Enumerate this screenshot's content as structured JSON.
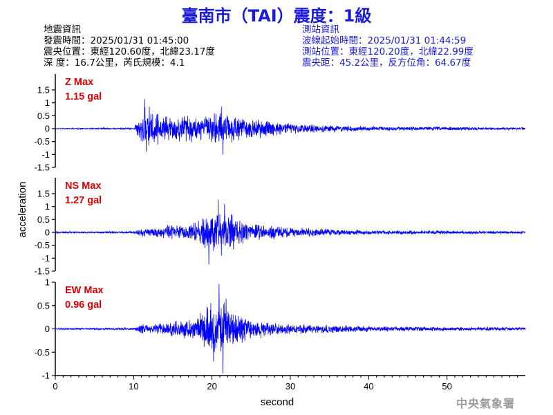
{
  "header": {
    "title": "臺南市（TAI）震度：1級"
  },
  "quake_info": {
    "heading": "地震資訊",
    "time": "發震時間：2025/01/31 01:45:00",
    "epicenter": "震央位置：東經120.60度，北緯23.17度",
    "depth_magnitude": "深    度：16.7公里，芮氏規模：4.1"
  },
  "station_info": {
    "heading": "測站資訊",
    "wave_start": "波線起始時間：2025/01/31 01:44:59",
    "location": "測站位置：東經120.20度，北緯22.99度",
    "distance": "震央距：45.2公里，反方位角：64.67度"
  },
  "watermark": "中央氣象署",
  "colors": {
    "title": "#1a1adf",
    "trace": "#0000ff",
    "max_label": "#e00000"
  },
  "chart_data": {
    "type": "line",
    "xlabel": "second",
    "ylabel": "acceleration",
    "xlim": [
      0,
      60
    ],
    "xticks": [
      0,
      10,
      20,
      30,
      40,
      50
    ],
    "panels": [
      {
        "component": "Z",
        "max_label": "Z Max",
        "max_value_label": "1.15 gal",
        "peak": 1.15,
        "ylim": [
          -1.5,
          1.5
        ],
        "yticks": [
          1.5,
          1,
          0.5,
          0,
          -0.5,
          -1,
          -1.5
        ],
        "envelope": [
          [
            0,
            0.03
          ],
          [
            6,
            0.03
          ],
          [
            6.2,
            0.08
          ],
          [
            6.6,
            0.03
          ],
          [
            10,
            0.04
          ],
          [
            10.8,
            0.55
          ],
          [
            11.3,
            0.95
          ],
          [
            12.5,
            0.75
          ],
          [
            15,
            0.55
          ],
          [
            18,
            0.6
          ],
          [
            21,
            0.7
          ],
          [
            23,
            0.55
          ],
          [
            26,
            0.4
          ],
          [
            30,
            0.25
          ],
          [
            35,
            0.15
          ],
          [
            40,
            0.1
          ],
          [
            50,
            0.08
          ],
          [
            60,
            0.05
          ]
        ],
        "spikes": [
          [
            11.4,
            1.15
          ],
          [
            11.6,
            -0.9
          ],
          [
            21.4,
            -1.0
          ],
          [
            21.2,
            0.85
          ],
          [
            12.0,
            0.85
          ]
        ]
      },
      {
        "component": "NS",
        "max_label": "NS Max",
        "max_value_label": "1.27 gal",
        "peak": 1.27,
        "ylim": [
          -1.5,
          1.5
        ],
        "yticks": [
          1.5,
          1,
          0.5,
          0,
          -0.5,
          -1,
          -1.5
        ],
        "envelope": [
          [
            0,
            0.04
          ],
          [
            10,
            0.05
          ],
          [
            11,
            0.2
          ],
          [
            13,
            0.28
          ],
          [
            17,
            0.35
          ],
          [
            18.5,
            0.55
          ],
          [
            19.5,
            0.85
          ],
          [
            21,
            0.95
          ],
          [
            22.5,
            0.8
          ],
          [
            24,
            0.45
          ],
          [
            27,
            0.3
          ],
          [
            30,
            0.22
          ],
          [
            35,
            0.15
          ],
          [
            40,
            0.1
          ],
          [
            50,
            0.08
          ],
          [
            60,
            0.06
          ]
        ],
        "spikes": [
          [
            19.6,
            -1.25
          ],
          [
            20.8,
            1.27
          ],
          [
            21.6,
            1.1
          ],
          [
            21.2,
            -0.9
          ]
        ]
      },
      {
        "component": "EW",
        "max_label": "EW Max",
        "max_value_label": "0.96 gal",
        "peak": 0.96,
        "ylim": [
          -1,
          1
        ],
        "yticks": [
          1,
          0.5,
          0,
          -0.5,
          -1
        ],
        "envelope": [
          [
            0,
            0.02
          ],
          [
            10,
            0.03
          ],
          [
            11,
            0.12
          ],
          [
            13,
            0.14
          ],
          [
            18,
            0.25
          ],
          [
            19,
            0.45
          ],
          [
            20.2,
            0.7
          ],
          [
            21.2,
            0.75
          ],
          [
            22.5,
            0.55
          ],
          [
            25,
            0.25
          ],
          [
            28,
            0.15
          ],
          [
            35,
            0.1
          ],
          [
            40,
            0.07
          ],
          [
            50,
            0.05
          ],
          [
            60,
            0.04
          ]
        ],
        "spikes": [
          [
            20.9,
            0.96
          ],
          [
            21.4,
            -0.95
          ],
          [
            20.2,
            -0.7
          ],
          [
            21.8,
            0.65
          ]
        ]
      }
    ]
  }
}
